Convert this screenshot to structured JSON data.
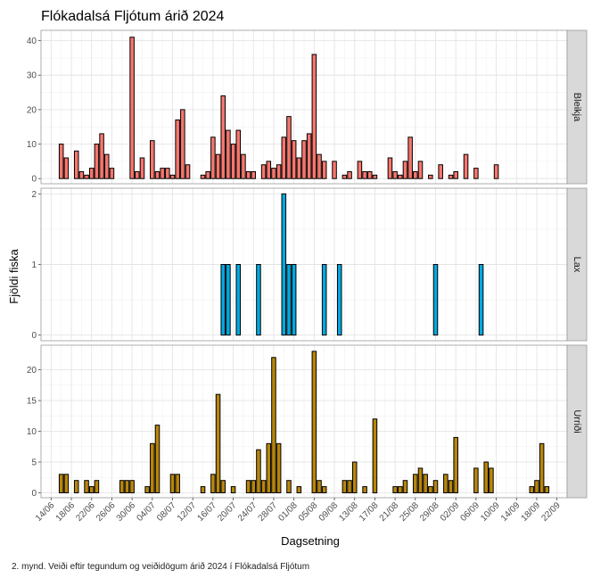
{
  "caption": "2. mynd. Veiði eftir tegundum og veiðidögum árið 2024 í Flókadalsá Fljótum",
  "chart_data": {
    "type": "bar",
    "title": "Flókadalsá Fljótum árið 2024",
    "xlabel": "Dagsetning",
    "ylabel": "Fjöldi fiska",
    "x_axis": {
      "type": "date",
      "range": [
        "2024-06-12",
        "2024-09-24"
      ],
      "ticks": [
        "2024-06-14",
        "2024-06-18",
        "2024-06-22",
        "2024-06-26",
        "2024-06-30",
        "2024-07-04",
        "2024-07-08",
        "2024-07-12",
        "2024-07-16",
        "2024-07-20",
        "2024-07-24",
        "2024-07-28",
        "2024-08-01",
        "2024-08-05",
        "2024-08-09",
        "2024-08-13",
        "2024-08-17",
        "2024-08-21",
        "2024-08-25",
        "2024-08-29",
        "2024-09-02",
        "2024-09-06",
        "2024-09-10",
        "2024-09-14",
        "2024-09-18",
        "2024-09-22"
      ],
      "tick_labels": [
        "14/06",
        "18/06",
        "22/06",
        "26/06",
        "30/06",
        "04/07",
        "08/07",
        "12/07",
        "16/07",
        "20/07",
        "24/07",
        "28/07",
        "01/08",
        "05/08",
        "09/08",
        "13/08",
        "17/08",
        "21/08",
        "25/08",
        "29/08",
        "02/09",
        "06/09",
        "10/09",
        "14/09",
        "18/09",
        "22/09"
      ]
    },
    "grid": true,
    "panels": [
      {
        "name": "Bleikja",
        "color": "#F8766D",
        "ylim": [
          -1.5,
          43
        ],
        "yticks": [
          0,
          10,
          20,
          30,
          40
        ],
        "points": [
          {
            "x": "2024-06-16",
            "y": 10
          },
          {
            "x": "2024-06-17",
            "y": 6
          },
          {
            "x": "2024-06-19",
            "y": 8
          },
          {
            "x": "2024-06-20",
            "y": 2
          },
          {
            "x": "2024-06-21",
            "y": 1
          },
          {
            "x": "2024-06-22",
            "y": 3
          },
          {
            "x": "2024-06-23",
            "y": 10
          },
          {
            "x": "2024-06-24",
            "y": 13
          },
          {
            "x": "2024-06-25",
            "y": 7
          },
          {
            "x": "2024-06-26",
            "y": 3
          },
          {
            "x": "2024-06-30",
            "y": 41
          },
          {
            "x": "2024-07-01",
            "y": 2
          },
          {
            "x": "2024-07-02",
            "y": 6
          },
          {
            "x": "2024-07-04",
            "y": 11
          },
          {
            "x": "2024-07-05",
            "y": 2
          },
          {
            "x": "2024-07-06",
            "y": 3
          },
          {
            "x": "2024-07-07",
            "y": 3
          },
          {
            "x": "2024-07-08",
            "y": 1
          },
          {
            "x": "2024-07-09",
            "y": 17
          },
          {
            "x": "2024-07-10",
            "y": 20
          },
          {
            "x": "2024-07-11",
            "y": 4
          },
          {
            "x": "2024-07-14",
            "y": 1
          },
          {
            "x": "2024-07-15",
            "y": 2
          },
          {
            "x": "2024-07-16",
            "y": 12
          },
          {
            "x": "2024-07-17",
            "y": 7
          },
          {
            "x": "2024-07-18",
            "y": 24
          },
          {
            "x": "2024-07-19",
            "y": 14
          },
          {
            "x": "2024-07-20",
            "y": 10
          },
          {
            "x": "2024-07-21",
            "y": 14
          },
          {
            "x": "2024-07-22",
            "y": 7
          },
          {
            "x": "2024-07-23",
            "y": 2
          },
          {
            "x": "2024-07-24",
            "y": 2
          },
          {
            "x": "2024-07-26",
            "y": 4
          },
          {
            "x": "2024-07-27",
            "y": 5
          },
          {
            "x": "2024-07-28",
            "y": 3
          },
          {
            "x": "2024-07-29",
            "y": 4
          },
          {
            "x": "2024-07-30",
            "y": 12
          },
          {
            "x": "2024-07-31",
            "y": 18
          },
          {
            "x": "2024-08-01",
            "y": 11
          },
          {
            "x": "2024-08-02",
            "y": 6
          },
          {
            "x": "2024-08-03",
            "y": 11
          },
          {
            "x": "2024-08-04",
            "y": 13
          },
          {
            "x": "2024-08-05",
            "y": 36
          },
          {
            "x": "2024-08-06",
            "y": 7
          },
          {
            "x": "2024-08-07",
            "y": 5
          },
          {
            "x": "2024-08-09",
            "y": 5
          },
          {
            "x": "2024-08-11",
            "y": 1
          },
          {
            "x": "2024-08-12",
            "y": 2
          },
          {
            "x": "2024-08-14",
            "y": 5
          },
          {
            "x": "2024-08-15",
            "y": 2
          },
          {
            "x": "2024-08-16",
            "y": 2
          },
          {
            "x": "2024-08-17",
            "y": 1
          },
          {
            "x": "2024-08-20",
            "y": 6
          },
          {
            "x": "2024-08-21",
            "y": 2
          },
          {
            "x": "2024-08-22",
            "y": 1
          },
          {
            "x": "2024-08-23",
            "y": 5
          },
          {
            "x": "2024-08-24",
            "y": 12
          },
          {
            "x": "2024-08-25",
            "y": 2
          },
          {
            "x": "2024-08-26",
            "y": 5
          },
          {
            "x": "2024-08-28",
            "y": 1
          },
          {
            "x": "2024-08-30",
            "y": 4
          },
          {
            "x": "2024-09-01",
            "y": 1
          },
          {
            "x": "2024-09-02",
            "y": 2
          },
          {
            "x": "2024-09-04",
            "y": 7
          },
          {
            "x": "2024-09-06",
            "y": 3
          },
          {
            "x": "2024-09-10",
            "y": 4
          }
        ]
      },
      {
        "name": "Lax",
        "color": "#00A9E0",
        "ylim": [
          -0.08,
          2.08
        ],
        "yticks": [
          0,
          1,
          2
        ],
        "points": [
          {
            "x": "2024-07-18",
            "y": 1
          },
          {
            "x": "2024-07-19",
            "y": 1
          },
          {
            "x": "2024-07-21",
            "y": 1
          },
          {
            "x": "2024-07-25",
            "y": 1
          },
          {
            "x": "2024-07-30",
            "y": 2
          },
          {
            "x": "2024-07-31",
            "y": 1
          },
          {
            "x": "2024-08-01",
            "y": 1
          },
          {
            "x": "2024-08-07",
            "y": 1
          },
          {
            "x": "2024-08-10",
            "y": 1
          },
          {
            "x": "2024-08-29",
            "y": 1
          },
          {
            "x": "2024-09-07",
            "y": 1
          }
        ]
      },
      {
        "name": "Urriði",
        "color": "#B8860B",
        "ylim": [
          -0.8,
          24
        ],
        "yticks": [
          0,
          5,
          10,
          15,
          20
        ],
        "points": [
          {
            "x": "2024-06-16",
            "y": 3
          },
          {
            "x": "2024-06-17",
            "y": 3
          },
          {
            "x": "2024-06-19",
            "y": 2
          },
          {
            "x": "2024-06-21",
            "y": 2
          },
          {
            "x": "2024-06-22",
            "y": 1
          },
          {
            "x": "2024-06-23",
            "y": 2
          },
          {
            "x": "2024-06-28",
            "y": 2
          },
          {
            "x": "2024-06-29",
            "y": 2
          },
          {
            "x": "2024-06-30",
            "y": 2
          },
          {
            "x": "2024-07-03",
            "y": 1
          },
          {
            "x": "2024-07-04",
            "y": 8
          },
          {
            "x": "2024-07-05",
            "y": 11
          },
          {
            "x": "2024-07-08",
            "y": 3
          },
          {
            "x": "2024-07-09",
            "y": 3
          },
          {
            "x": "2024-07-14",
            "y": 1
          },
          {
            "x": "2024-07-16",
            "y": 3
          },
          {
            "x": "2024-07-17",
            "y": 16
          },
          {
            "x": "2024-07-18",
            "y": 2
          },
          {
            "x": "2024-07-20",
            "y": 1
          },
          {
            "x": "2024-07-23",
            "y": 2
          },
          {
            "x": "2024-07-24",
            "y": 2
          },
          {
            "x": "2024-07-25",
            "y": 7
          },
          {
            "x": "2024-07-26",
            "y": 2
          },
          {
            "x": "2024-07-27",
            "y": 8
          },
          {
            "x": "2024-07-28",
            "y": 22
          },
          {
            "x": "2024-07-29",
            "y": 8
          },
          {
            "x": "2024-07-31",
            "y": 2
          },
          {
            "x": "2024-08-02",
            "y": 1
          },
          {
            "x": "2024-08-05",
            "y": 23
          },
          {
            "x": "2024-08-06",
            "y": 2
          },
          {
            "x": "2024-08-07",
            "y": 1
          },
          {
            "x": "2024-08-11",
            "y": 2
          },
          {
            "x": "2024-08-12",
            "y": 2
          },
          {
            "x": "2024-08-13",
            "y": 5
          },
          {
            "x": "2024-08-15",
            "y": 1
          },
          {
            "x": "2024-08-17",
            "y": 12
          },
          {
            "x": "2024-08-21",
            "y": 1
          },
          {
            "x": "2024-08-22",
            "y": 1
          },
          {
            "x": "2024-08-23",
            "y": 2
          },
          {
            "x": "2024-08-25",
            "y": 3
          },
          {
            "x": "2024-08-26",
            "y": 4
          },
          {
            "x": "2024-08-27",
            "y": 3
          },
          {
            "x": "2024-08-28",
            "y": 1
          },
          {
            "x": "2024-08-29",
            "y": 2
          },
          {
            "x": "2024-08-31",
            "y": 3
          },
          {
            "x": "2024-09-01",
            "y": 2
          },
          {
            "x": "2024-09-02",
            "y": 9
          },
          {
            "x": "2024-09-06",
            "y": 4
          },
          {
            "x": "2024-09-08",
            "y": 5
          },
          {
            "x": "2024-09-09",
            "y": 4
          },
          {
            "x": "2024-09-17",
            "y": 1
          },
          {
            "x": "2024-09-18",
            "y": 2
          },
          {
            "x": "2024-09-19",
            "y": 8
          },
          {
            "x": "2024-09-20",
            "y": 1
          }
        ]
      }
    ]
  }
}
